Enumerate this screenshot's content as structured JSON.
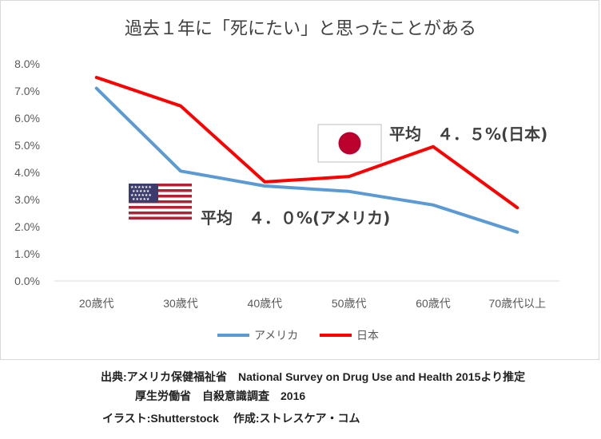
{
  "chart_data": {
    "type": "line",
    "title": "過去１年に「死にたい」と思ったことがある",
    "categories": [
      "20歳代",
      "30歳代",
      "40歳代",
      "50歳代",
      "60歳代",
      "70歳代以上"
    ],
    "series": [
      {
        "name": "アメリカ",
        "color": "#5b9bd5",
        "values": [
          7.1,
          4.05,
          3.5,
          3.3,
          2.8,
          1.8
        ]
      },
      {
        "name": "日本",
        "color": "#ff0000",
        "values": [
          7.5,
          6.45,
          3.65,
          3.85,
          4.95,
          2.7
        ]
      }
    ],
    "ylim": [
      0,
      8
    ],
    "yticks": [
      "0.0%",
      "1.0%",
      "2.0%",
      "3.0%",
      "4.0%",
      "5.0%",
      "6.0%",
      "7.0%",
      "8.0%"
    ],
    "grid": false,
    "legend_position": "bottom",
    "annotations": {
      "japan_avg": "平均　４．５%(日本)",
      "us_avg": "平均　４．０%(アメリカ)"
    }
  },
  "footer": {
    "line1": "出典:アメリカ保健福祉省　National Survey on Drug Use and Health 2015より推定",
    "line2": "厚生労働省　自殺意識調査　2016",
    "line3": "イラスト:Shutterstock　 作成:ストレスケア・コム"
  },
  "icons": {
    "us_flag": "us-flag-icon",
    "japan_flag": "japan-flag-icon"
  }
}
